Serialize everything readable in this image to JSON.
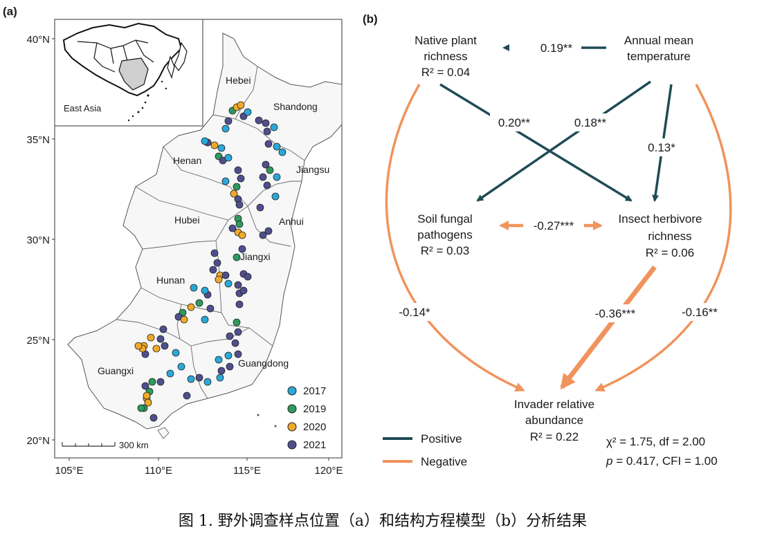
{
  "panel_a": {
    "label": "(a)",
    "inset_label": "East Asia",
    "lat_ticks": [
      "40°N",
      "35°N",
      "30°N",
      "25°N",
      "20°N"
    ],
    "lon_ticks": [
      "105°E",
      "110°E",
      "115°E",
      "120°E"
    ],
    "scale_bar": "300 km",
    "provinces": [
      "Hebei",
      "Shandong",
      "Henan",
      "Jiangsu",
      "Hubei",
      "Anhui",
      "Jiangxi",
      "Hunan",
      "Guangxi",
      "Guangdong"
    ],
    "legend": [
      {
        "year": "2017",
        "color": "#2aa8d8"
      },
      {
        "year": "2019",
        "color": "#2e9a5e"
      },
      {
        "year": "2020",
        "color": "#f0a92a"
      },
      {
        "year": "2021",
        "color": "#4f4f8f"
      }
    ]
  },
  "panel_b": {
    "label": "(b)",
    "nodes": {
      "native": [
        "Native plant",
        "richness",
        "R² = 0.04"
      ],
      "temp": [
        "Annual mean",
        "temperature"
      ],
      "soil": [
        "Soil fungal",
        "pathogens",
        "R² = 0.03"
      ],
      "insect": [
        "Insect herbivore",
        "richness",
        "R² = 0.06"
      ],
      "invader": [
        "Invader relative",
        "abundance",
        "R² = 0.22"
      ]
    },
    "paths": {
      "temp_native": "0.19**",
      "native_insect": "0.20**",
      "temp_soil": "0.18**",
      "temp_insect": "0.13*",
      "soil_insect": "-0.27***",
      "native_invader": "-0.14*",
      "insect_invader": "-0.36***",
      "temp_invader": "-0.16**"
    },
    "legend": [
      {
        "label": "Positive",
        "color": "#1f4b55"
      },
      {
        "label": "Negative",
        "color": "#f0935c"
      }
    ],
    "fit": {
      "line1": "χ² = 1.75, df = 2.00",
      "line2_p": "p",
      "line2_rest": " = 0.417, CFI = 1.00"
    }
  },
  "caption": "图 1. 野外调查样点位置（a）和结构方程模型（b）分析结果"
}
